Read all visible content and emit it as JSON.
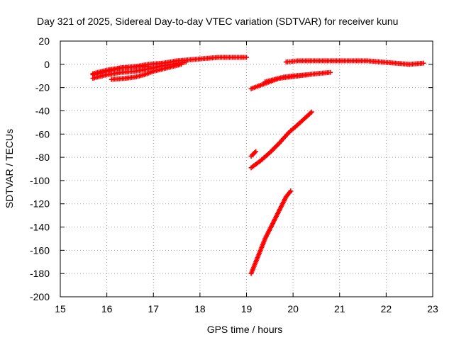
{
  "chart_data": {
    "type": "scatter",
    "title": "Day 321 of 2025, Sidereal Day-to-day VTEC variation (SDTVAR) for receiver kunu",
    "xlabel": "GPS time / hours",
    "ylabel": "SDTVAR / TECUs",
    "xlim": [
      15,
      23
    ],
    "ylim": [
      -200,
      20
    ],
    "xticks": [
      15,
      16,
      17,
      18,
      19,
      20,
      21,
      22,
      23
    ],
    "yticks": [
      20,
      0,
      -20,
      -40,
      -60,
      -80,
      -100,
      -120,
      -140,
      -160,
      -180,
      -200
    ],
    "grid": true,
    "marker": "plus",
    "color": "#ff0000",
    "segments": [
      {
        "points": [
          [
            15.7,
            -9
          ],
          [
            16.0,
            -6
          ],
          [
            16.3,
            -3
          ],
          [
            16.6,
            -2
          ],
          [
            16.9,
            0
          ],
          [
            17.2,
            1
          ],
          [
            17.5,
            3
          ],
          [
            17.8,
            4
          ],
          [
            18.1,
            5
          ],
          [
            18.4,
            6
          ],
          [
            18.7,
            6
          ],
          [
            19.0,
            6
          ]
        ]
      },
      {
        "points": [
          [
            15.7,
            -12
          ],
          [
            16.0,
            -9
          ],
          [
            16.3,
            -7
          ],
          [
            16.6,
            -6
          ],
          [
            16.9,
            -4
          ],
          [
            17.1,
            -2
          ],
          [
            17.4,
            0
          ],
          [
            17.7,
            2
          ]
        ]
      },
      {
        "points": [
          [
            16.1,
            -13
          ],
          [
            16.4,
            -12
          ],
          [
            16.6,
            -11
          ],
          [
            16.8,
            -9
          ],
          [
            17.0,
            -6
          ],
          [
            17.3,
            -3
          ],
          [
            17.6,
            0
          ]
        ]
      },
      {
        "points": [
          [
            15.7,
            -8
          ],
          [
            16.0,
            -5
          ],
          [
            16.3,
            -3
          ],
          [
            16.6,
            -2
          ],
          [
            16.9,
            -2
          ]
        ]
      },
      {
        "points": [
          [
            19.1,
            -21
          ],
          [
            19.3,
            -18
          ],
          [
            19.5,
            -15
          ],
          [
            19.7,
            -12
          ],
          [
            19.9,
            -11
          ],
          [
            20.1,
            -10
          ],
          [
            20.3,
            -9
          ],
          [
            20.5,
            -8
          ],
          [
            20.8,
            -7
          ]
        ]
      },
      {
        "points": [
          [
            19.4,
            -15
          ],
          [
            19.6,
            -13
          ],
          [
            19.8,
            -11
          ],
          [
            20.0,
            -10
          ],
          [
            20.3,
            -9
          ]
        ]
      },
      {
        "points": [
          [
            19.85,
            2
          ],
          [
            20.1,
            3
          ],
          [
            20.4,
            3
          ],
          [
            20.7,
            3
          ],
          [
            21.0,
            3
          ],
          [
            21.3,
            3
          ],
          [
            21.6,
            3
          ],
          [
            21.9,
            2
          ],
          [
            22.2,
            1
          ],
          [
            22.5,
            0
          ],
          [
            22.8,
            1
          ]
        ]
      },
      {
        "points": [
          [
            19.1,
            -79
          ],
          [
            19.2,
            -75
          ]
        ]
      },
      {
        "points": [
          [
            19.1,
            -89
          ],
          [
            19.3,
            -83
          ],
          [
            19.5,
            -76
          ],
          [
            19.7,
            -68
          ],
          [
            19.9,
            -59
          ],
          [
            20.1,
            -52
          ],
          [
            20.4,
            -41
          ]
        ]
      },
      {
        "points": [
          [
            19.1,
            -180
          ],
          [
            19.25,
            -165
          ],
          [
            19.4,
            -150
          ],
          [
            19.55,
            -138
          ],
          [
            19.7,
            -126
          ],
          [
            19.85,
            -114
          ],
          [
            19.95,
            -109
          ]
        ]
      }
    ]
  }
}
